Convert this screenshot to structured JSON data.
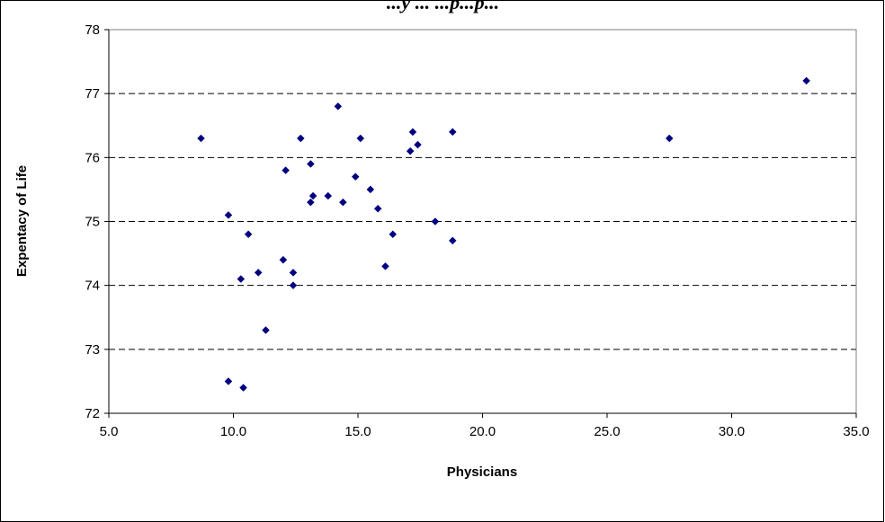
{
  "chart_data": {
    "type": "scatter",
    "title": "...y ... ...p...p...",
    "xlabel": "Physicians",
    "ylabel": "Expentacy of Life",
    "xlim": [
      5.0,
      35.0
    ],
    "ylim": [
      72,
      78
    ],
    "x_ticks": [
      "5.0",
      "10.0",
      "15.0",
      "20.0",
      "25.0",
      "30.0",
      "35.0"
    ],
    "y_ticks": [
      "72",
      "73",
      "74",
      "75",
      "76",
      "77",
      "78"
    ],
    "grid": "horizontal dashed",
    "legend": "none",
    "marker_color": "#000080",
    "points": [
      {
        "x": 8.7,
        "y": 76.3
      },
      {
        "x": 9.8,
        "y": 75.1
      },
      {
        "x": 9.8,
        "y": 72.5
      },
      {
        "x": 10.3,
        "y": 74.1
      },
      {
        "x": 10.4,
        "y": 72.4
      },
      {
        "x": 10.6,
        "y": 74.8
      },
      {
        "x": 11.0,
        "y": 74.2
      },
      {
        "x": 11.3,
        "y": 73.3
      },
      {
        "x": 12.0,
        "y": 74.4
      },
      {
        "x": 12.1,
        "y": 75.8
      },
      {
        "x": 12.4,
        "y": 74.0
      },
      {
        "x": 12.4,
        "y": 74.2
      },
      {
        "x": 12.7,
        "y": 76.3
      },
      {
        "x": 13.1,
        "y": 75.3
      },
      {
        "x": 13.1,
        "y": 75.9
      },
      {
        "x": 13.2,
        "y": 75.4
      },
      {
        "x": 13.8,
        "y": 75.4
      },
      {
        "x": 14.2,
        "y": 76.8
      },
      {
        "x": 14.4,
        "y": 75.3
      },
      {
        "x": 14.9,
        "y": 75.7
      },
      {
        "x": 15.1,
        "y": 76.3
      },
      {
        "x": 15.5,
        "y": 75.5
      },
      {
        "x": 15.8,
        "y": 75.2
      },
      {
        "x": 16.1,
        "y": 74.3
      },
      {
        "x": 16.4,
        "y": 74.8
      },
      {
        "x": 17.1,
        "y": 76.1
      },
      {
        "x": 17.2,
        "y": 76.4
      },
      {
        "x": 17.4,
        "y": 76.2
      },
      {
        "x": 18.1,
        "y": 75.0
      },
      {
        "x": 18.8,
        "y": 74.7
      },
      {
        "x": 18.8,
        "y": 76.4
      },
      {
        "x": 27.5,
        "y": 76.3
      },
      {
        "x": 33.0,
        "y": 77.2
      }
    ]
  }
}
